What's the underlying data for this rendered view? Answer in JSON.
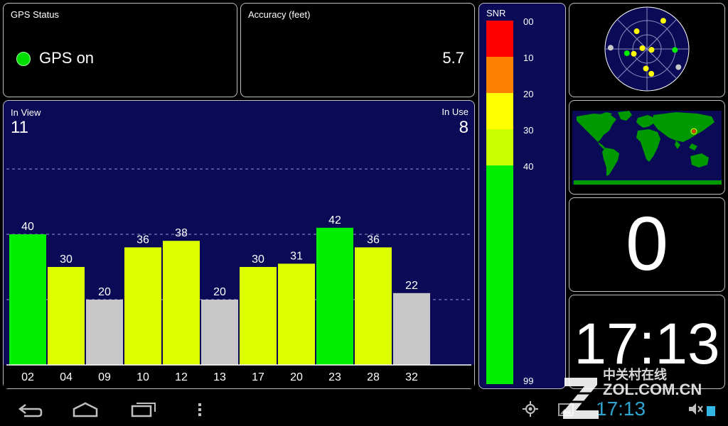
{
  "status": {
    "title": "GPS Status",
    "text": "GPS on",
    "color": "#00dd00"
  },
  "accuracy": {
    "title": "Accuracy (feet)",
    "value": "5.7"
  },
  "satellites": {
    "in_view_label": "In View",
    "in_view": "11",
    "in_use_label": "In Use",
    "in_use": "8"
  },
  "chart_data": {
    "type": "bar",
    "categories": [
      "02",
      "04",
      "09",
      "10",
      "12",
      "13",
      "17",
      "20",
      "23",
      "28",
      "32"
    ],
    "values": [
      40,
      30,
      20,
      36,
      38,
      20,
      30,
      31,
      42,
      36,
      22
    ],
    "colors": [
      "#00ee00",
      "#ddff00",
      "#c8c8c8",
      "#ddff00",
      "#ddff00",
      "#c8c8c8",
      "#ddff00",
      "#ddff00",
      "#00ee00",
      "#ddff00",
      "#c8c8c8"
    ],
    "grid": true
  },
  "snr": {
    "title": "SNR",
    "ticks": [
      "00",
      "10",
      "20",
      "30",
      "40",
      "99"
    ],
    "colors": [
      "#ff0000",
      "#ff7f00",
      "#ffff00",
      "#ccff00",
      "#00ee00"
    ]
  },
  "sky": {
    "satellites": [
      {
        "az": 330,
        "elev": 46,
        "color": "#ffff00"
      },
      {
        "az": 30,
        "elev": 20,
        "color": "#ffff00"
      },
      {
        "az": 272,
        "elev": 12,
        "color": "#c8c8c8"
      },
      {
        "az": 258,
        "elev": 46,
        "color": "#00ee00"
      },
      {
        "az": 280,
        "elev": 80,
        "color": "#ffff00"
      },
      {
        "az": 250,
        "elev": 60,
        "color": "#ffff00"
      },
      {
        "az": 100,
        "elev": 80,
        "color": "#ffff00"
      },
      {
        "az": 92,
        "elev": 30,
        "color": "#00ee00"
      },
      {
        "az": 120,
        "elev": 12,
        "color": "#c8c8c8"
      },
      {
        "az": 183,
        "elev": 48,
        "color": "#ffff00"
      },
      {
        "az": 170,
        "elev": 36,
        "color": "#ffff00"
      }
    ]
  },
  "map": {
    "land_color": "#009900",
    "ocean_color": "#0a0a56",
    "marker_color": "#ff3300"
  },
  "count": {
    "value": "0"
  },
  "time": {
    "value": "17:13"
  },
  "navbar": {
    "back_icon": "back-icon",
    "home_icon": "home-icon",
    "recent_icon": "recent-apps-icon",
    "menu_icon": "menu-icon",
    "gps_icon": "gps-icon",
    "gallery_icon": "gallery-icon",
    "mute_icon": "mute-icon",
    "battery_icon": "battery-icon",
    "clock": "17:13"
  },
  "watermark": {
    "brand": "中关村在线",
    "domain": "ZOL.COM.CN"
  }
}
